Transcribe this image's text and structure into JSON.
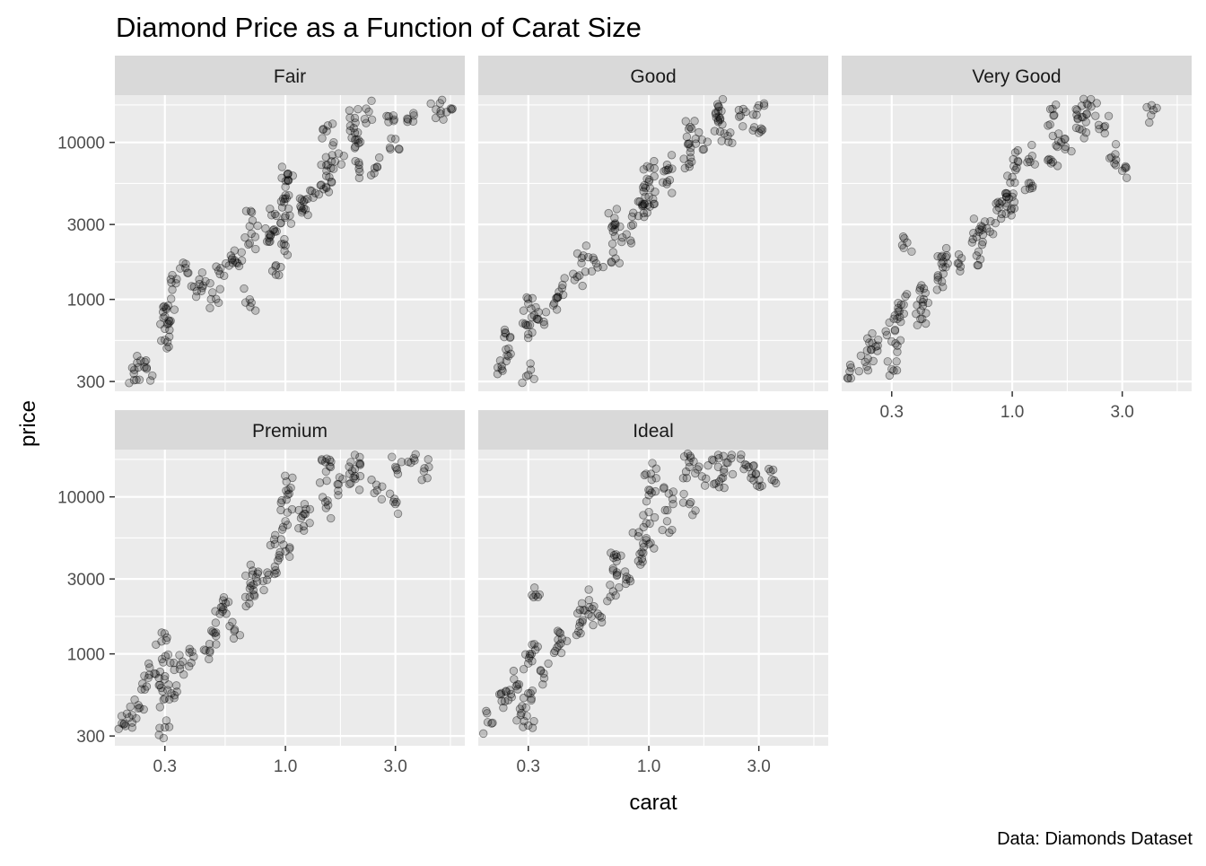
{
  "chart_data": {
    "type": "scatter",
    "title": "Diamond Price as a Function of Carat Size",
    "xlabel": "carat",
    "ylabel": "price",
    "caption": "Data: Diamonds Dataset",
    "x_scale": "log10",
    "y_scale": "log10",
    "xlim": [
      0.182,
      6.0
    ],
    "ylim": [
      260,
      20000
    ],
    "x_ticks": [
      {
        "value": 0.3,
        "label": "0.3"
      },
      {
        "value": 1.0,
        "label": "1.0"
      },
      {
        "value": 3.0,
        "label": "3.0"
      }
    ],
    "y_ticks": [
      {
        "value": 300,
        "label": "300"
      },
      {
        "value": 1000,
        "label": "1000"
      },
      {
        "value": 3000,
        "label": "3000"
      },
      {
        "value": 10000,
        "label": "10000"
      }
    ],
    "x_minor_grid": [
      0.5477,
      1.7321,
      5.196
    ],
    "y_minor_grid": [
      547.7,
      1732.1,
      5477.2,
      17320.5
    ],
    "point_color": "#000000",
    "point_alpha": 0.2,
    "grid": true,
    "legend": "none",
    "facets": [
      {
        "name": "Fair",
        "points": [
          [
            0.22,
            337
          ],
          [
            0.23,
            369
          ],
          [
            0.25,
            361
          ],
          [
            0.3,
            780
          ],
          [
            0.3,
            650
          ],
          [
            0.3,
            552
          ],
          [
            0.31,
            911
          ],
          [
            0.32,
            1280
          ],
          [
            0.36,
            1710
          ],
          [
            0.41,
            1040
          ],
          [
            0.45,
            1305
          ],
          [
            0.5,
            1005
          ],
          [
            0.52,
            1450
          ],
          [
            0.58,
            1900
          ],
          [
            0.62,
            1700
          ],
          [
            0.7,
            2280
          ],
          [
            0.7,
            1000
          ],
          [
            0.72,
            3180
          ],
          [
            0.85,
            2600
          ],
          [
            0.9,
            3500
          ],
          [
            0.9,
            2700
          ],
          [
            0.91,
            1650
          ],
          [
            1.0,
            5200
          ],
          [
            1.0,
            3400
          ],
          [
            1.0,
            2200
          ],
          [
            1.01,
            4400
          ],
          [
            1.02,
            6250
          ],
          [
            1.2,
            4200
          ],
          [
            1.2,
            3800
          ],
          [
            1.35,
            4750
          ],
          [
            1.5,
            8050
          ],
          [
            1.5,
            5200
          ],
          [
            1.51,
            11800
          ],
          [
            1.55,
            6000
          ],
          [
            1.7,
            8500
          ],
          [
            2.0,
            14300
          ],
          [
            2.0,
            11500
          ],
          [
            2.01,
            9400
          ],
          [
            2.1,
            6500
          ],
          [
            2.3,
            15700
          ],
          [
            2.5,
            7000
          ],
          [
            2.8,
            13500
          ],
          [
            3.0,
            10500
          ],
          [
            3.4,
            14000
          ],
          [
            4.5,
            16200
          ],
          [
            5.0,
            15600
          ]
        ]
      },
      {
        "name": "Good",
        "points": [
          [
            0.23,
            360
          ],
          [
            0.24,
            480
          ],
          [
            0.25,
            570
          ],
          [
            0.3,
            330
          ],
          [
            0.3,
            600
          ],
          [
            0.3,
            940
          ],
          [
            0.31,
            770
          ],
          [
            0.35,
            720
          ],
          [
            0.4,
            1020
          ],
          [
            0.42,
            1180
          ],
          [
            0.5,
            1420
          ],
          [
            0.52,
            1900
          ],
          [
            0.6,
            1600
          ],
          [
            0.7,
            2000
          ],
          [
            0.7,
            2700
          ],
          [
            0.71,
            3300
          ],
          [
            0.8,
            2600
          ],
          [
            0.9,
            3400
          ],
          [
            0.9,
            4200
          ],
          [
            1.0,
            4500
          ],
          [
            1.0,
            5600
          ],
          [
            1.01,
            6900
          ],
          [
            1.01,
            3900
          ],
          [
            1.2,
            5600
          ],
          [
            1.2,
            7200
          ],
          [
            1.5,
            7000
          ],
          [
            1.5,
            9800
          ],
          [
            1.51,
            12500
          ],
          [
            1.7,
            10400
          ],
          [
            2.0,
            13500
          ],
          [
            2.0,
            15800
          ],
          [
            2.01,
            16800
          ],
          [
            2.2,
            11000
          ],
          [
            2.5,
            14800
          ],
          [
            3.0,
            17200
          ],
          [
            3.0,
            11500
          ]
        ]
      },
      {
        "name": "Very Good",
        "points": [
          [
            0.2,
            367
          ],
          [
            0.23,
            400
          ],
          [
            0.24,
            530
          ],
          [
            0.26,
            470
          ],
          [
            0.3,
            360
          ],
          [
            0.3,
            540
          ],
          [
            0.31,
            640
          ],
          [
            0.32,
            880
          ],
          [
            0.33,
            930
          ],
          [
            0.35,
            2300
          ],
          [
            0.4,
            750
          ],
          [
            0.4,
            1000
          ],
          [
            0.42,
            1100
          ],
          [
            0.5,
            1200
          ],
          [
            0.5,
            1600
          ],
          [
            0.52,
            1900
          ],
          [
            0.58,
            1700
          ],
          [
            0.7,
            1900
          ],
          [
            0.7,
            2500
          ],
          [
            0.72,
            2800
          ],
          [
            0.8,
            2700
          ],
          [
            0.9,
            3500
          ],
          [
            0.9,
            4200
          ],
          [
            1.0,
            4500
          ],
          [
            1.0,
            6000
          ],
          [
            1.01,
            7800
          ],
          [
            1.02,
            3800
          ],
          [
            1.2,
            5500
          ],
          [
            1.22,
            8200
          ],
          [
            1.5,
            7500
          ],
          [
            1.5,
            11000
          ],
          [
            1.51,
            14800
          ],
          [
            1.7,
            9400
          ],
          [
            2.0,
            14500
          ],
          [
            2.0,
            17100
          ],
          [
            2.01,
            12000
          ],
          [
            2.2,
            16900
          ],
          [
            2.5,
            12500
          ],
          [
            2.8,
            8400
          ],
          [
            3.0,
            6600
          ],
          [
            4.0,
            14900
          ]
        ]
      },
      {
        "name": "Premium",
        "points": [
          [
            0.2,
            360
          ],
          [
            0.21,
            394
          ],
          [
            0.23,
            450
          ],
          [
            0.25,
            620
          ],
          [
            0.27,
            750
          ],
          [
            0.29,
            1200
          ],
          [
            0.3,
            340
          ],
          [
            0.3,
            520
          ],
          [
            0.3,
            720
          ],
          [
            0.31,
            990
          ],
          [
            0.32,
            560
          ],
          [
            0.35,
            850
          ],
          [
            0.4,
            960
          ],
          [
            0.45,
            1050
          ],
          [
            0.5,
            1300
          ],
          [
            0.52,
            1800
          ],
          [
            0.55,
            2100
          ],
          [
            0.6,
            1400
          ],
          [
            0.7,
            2300
          ],
          [
            0.71,
            2700
          ],
          [
            0.72,
            3200
          ],
          [
            0.8,
            2900
          ],
          [
            0.9,
            3600
          ],
          [
            0.9,
            5000
          ],
          [
            1.0,
            4500
          ],
          [
            1.0,
            7000
          ],
          [
            1.01,
            9600
          ],
          [
            1.01,
            12500
          ],
          [
            1.2,
            6500
          ],
          [
            1.21,
            9000
          ],
          [
            1.5,
            8500
          ],
          [
            1.5,
            14500
          ],
          [
            1.51,
            17500
          ],
          [
            1.7,
            12000
          ],
          [
            2.0,
            15000
          ],
          [
            2.0,
            18500
          ],
          [
            2.01,
            13000
          ],
          [
            2.5,
            11000
          ],
          [
            3.0,
            9000
          ],
          [
            3.0,
            15500
          ],
          [
            3.5,
            16500
          ],
          [
            4.01,
            15200
          ]
        ]
      },
      {
        "name": "Ideal",
        "points": [
          [
            0.2,
            367
          ],
          [
            0.23,
            500
          ],
          [
            0.24,
            580
          ],
          [
            0.26,
            690
          ],
          [
            0.28,
            420
          ],
          [
            0.3,
            350
          ],
          [
            0.3,
            560
          ],
          [
            0.3,
            870
          ],
          [
            0.31,
            1000
          ],
          [
            0.33,
            2300
          ],
          [
            0.35,
            750
          ],
          [
            0.4,
            1100
          ],
          [
            0.42,
            1250
          ],
          [
            0.5,
            1500
          ],
          [
            0.52,
            1900
          ],
          [
            0.55,
            2200
          ],
          [
            0.6,
            1800
          ],
          [
            0.7,
            2500
          ],
          [
            0.7,
            3500
          ],
          [
            0.72,
            4300
          ],
          [
            0.8,
            3100
          ],
          [
            0.9,
            3900
          ],
          [
            0.9,
            5600
          ],
          [
            1.0,
            5000
          ],
          [
            1.0,
            8000
          ],
          [
            1.01,
            11000
          ],
          [
            1.02,
            14000
          ],
          [
            1.2,
            7000
          ],
          [
            1.22,
            10500
          ],
          [
            1.5,
            9000
          ],
          [
            1.5,
            15500
          ],
          [
            1.51,
            18200
          ],
          [
            1.7,
            13500
          ],
          [
            2.0,
            15500
          ],
          [
            2.0,
            18500
          ],
          [
            2.02,
            12500
          ],
          [
            2.2,
            16500
          ],
          [
            2.5,
            17500
          ],
          [
            2.8,
            14000
          ],
          [
            3.01,
            12800
          ],
          [
            3.5,
            12700
          ]
        ]
      }
    ]
  }
}
